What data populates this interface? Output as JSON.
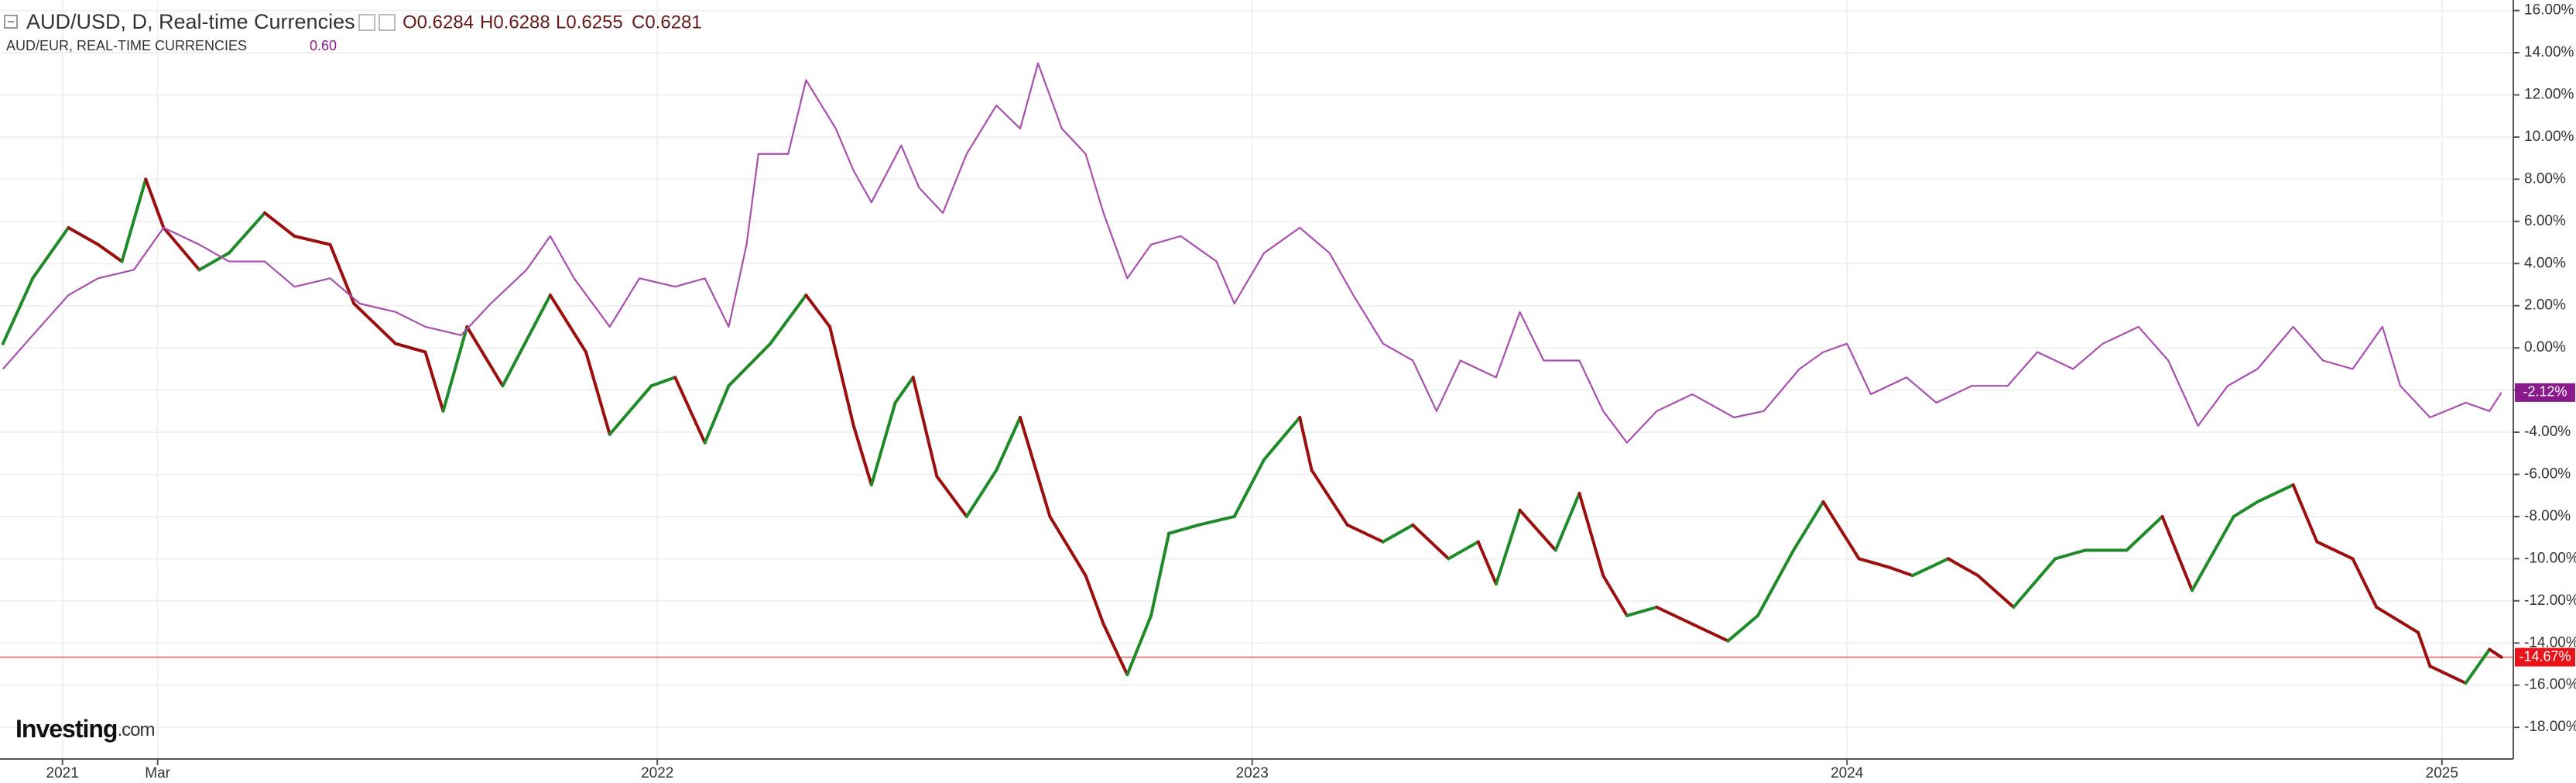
{
  "chart_data": {
    "type": "line",
    "title": "AUD/USD, D, Real-time Currencies",
    "ohlc": [
      "O0.6284",
      "H0.6288",
      "L0.6255",
      "C0.6281"
    ],
    "logo": [
      "Investing",
      ".com"
    ],
    "xlim": [
      2020.895,
      2025.12
    ],
    "xticks": [
      {
        "value": 2021,
        "label": "2021"
      },
      {
        "value": 2021.16,
        "label": "Mar"
      },
      {
        "value": 2022,
        "label": "2022"
      },
      {
        "value": 2023,
        "label": "2023"
      },
      {
        "value": 2024,
        "label": "2024"
      },
      {
        "value": 2025,
        "label": "2025"
      }
    ],
    "ylim": [
      16.5,
      -19.5
    ],
    "yticks": [
      {
        "value": 16,
        "label": "16.00%"
      },
      {
        "value": 14,
        "label": "14.00%"
      },
      {
        "value": 12,
        "label": "12.00%"
      },
      {
        "value": 10,
        "label": "10.00%"
      },
      {
        "value": 8,
        "label": "8.00%"
      },
      {
        "value": 6,
        "label": "6.00%"
      },
      {
        "value": 4,
        "label": "4.00%"
      },
      {
        "value": 2,
        "label": "2.00%"
      },
      {
        "value": 0,
        "label": "0.00%"
      },
      {
        "value": -2,
        "label": "-2.00%"
      },
      {
        "value": -4,
        "label": "-4.00%"
      },
      {
        "value": -6,
        "label": "-6.00%"
      },
      {
        "value": -8,
        "label": "-8.00%"
      },
      {
        "value": -10,
        "label": "-10.00%"
      },
      {
        "value": -12,
        "label": "-12.00%"
      },
      {
        "value": -14,
        "label": "-14.00%"
      },
      {
        "value": -16,
        "label": "-16.00%"
      },
      {
        "value": -18,
        "label": "-18.00%"
      }
    ],
    "grid": true,
    "series": [
      {
        "name": "AUD/USD, D, Real-time Currencies",
        "style": "updown",
        "up_color": "#1e8a28",
        "down_color": "#9c0f0f",
        "last_color": "#e8141a",
        "last_label": "-14.67%",
        "x": [
          2020.9,
          2020.95,
          2021.01,
          2021.06,
          2021.1,
          2021.14,
          2021.17,
          2021.23,
          2021.28,
          2021.34,
          2021.39,
          2021.45,
          2021.49,
          2021.56,
          2021.61,
          2021.64,
          2021.68,
          2021.74,
          2021.82,
          2021.88,
          2021.92,
          2021.99,
          2022.03,
          2022.08,
          2022.12,
          2022.19,
          2022.25,
          2022.29,
          2022.33,
          2022.36,
          2022.4,
          2022.43,
          2022.47,
          2022.52,
          2022.57,
          2022.61,
          2022.66,
          2022.72,
          2022.75,
          2022.79,
          2022.83,
          2022.86,
          2022.91,
          2022.97,
          2023.02,
          2023.08,
          2023.1,
          2023.16,
          2023.22,
          2023.27,
          2023.33,
          2023.38,
          2023.41,
          2023.45,
          2023.51,
          2023.55,
          2023.59,
          2023.63,
          2023.68,
          2023.74,
          2023.8,
          2023.85,
          2023.91,
          2023.96,
          2024.02,
          2024.07,
          2024.11,
          2024.17,
          2024.22,
          2024.28,
          2024.35,
          2024.4,
          2024.47,
          2024.53,
          2024.58,
          2024.65,
          2024.69,
          2024.75,
          2024.79,
          2024.85,
          2024.89,
          2024.96,
          2024.98,
          2025.04,
          2025.08,
          2025.1
        ],
        "values": [
          0.2,
          3.3,
          5.7,
          4.9,
          4.1,
          8.0,
          5.7,
          3.7,
          4.5,
          6.4,
          5.3,
          4.9,
          2.1,
          0.2,
          -0.2,
          -3.0,
          1.0,
          -1.8,
          2.5,
          -0.2,
          -4.1,
          -1.8,
          -1.4,
          -4.5,
          -1.8,
          0.2,
          2.5,
          1.0,
          -3.7,
          -6.5,
          -2.6,
          -1.4,
          -6.1,
          -8.0,
          -5.8,
          -3.3,
          -8.0,
          -10.8,
          -13.1,
          -15.5,
          -12.7,
          -8.8,
          -8.4,
          -8.0,
          -5.3,
          -3.3,
          -5.8,
          -8.4,
          -9.2,
          -8.4,
          -10.0,
          -9.2,
          -11.2,
          -7.7,
          -9.6,
          -6.9,
          -10.8,
          -12.7,
          -12.3,
          -13.1,
          -13.9,
          -12.7,
          -9.6,
          -7.3,
          -10.0,
          -10.4,
          -10.8,
          -10.0,
          -10.8,
          -12.3,
          -10.0,
          -9.6,
          -9.6,
          -8.0,
          -11.5,
          -8.0,
          -7.3,
          -6.5,
          -9.2,
          -10.0,
          -12.3,
          -13.5,
          -15.1,
          -15.9,
          -14.3,
          -14.67
        ]
      },
      {
        "name": "AUD/EUR, REAL-TIME CURRENCIES",
        "legend_value": "0.60",
        "style": "line",
        "color": "#a84fb0",
        "last_color": "#8b1a8c",
        "last_label": "-2.12%",
        "x": [
          2020.9,
          2020.95,
          2021.01,
          2021.06,
          2021.12,
          2021.17,
          2021.23,
          2021.28,
          2021.34,
          2021.39,
          2021.45,
          2021.5,
          2021.56,
          2021.61,
          2021.67,
          2021.72,
          2021.78,
          2021.82,
          2021.86,
          2021.92,
          2021.97,
          2022.03,
          2022.08,
          2022.12,
          2022.15,
          2022.17,
          2022.22,
          2022.25,
          2022.3,
          2022.33,
          2022.36,
          2022.41,
          2022.44,
          2022.48,
          2022.52,
          2022.57,
          2022.61,
          2022.64,
          2022.68,
          2022.72,
          2022.75,
          2022.79,
          2022.83,
          2022.88,
          2022.94,
          2022.97,
          2023.02,
          2023.08,
          2023.13,
          2023.17,
          2023.22,
          2023.27,
          2023.31,
          2023.35,
          2023.41,
          2023.45,
          2023.49,
          2023.55,
          2023.59,
          2023.63,
          2023.68,
          2023.74,
          2023.81,
          2023.86,
          2023.92,
          2023.96,
          2024.0,
          2024.04,
          2024.1,
          2024.15,
          2024.21,
          2024.27,
          2024.32,
          2024.38,
          2024.43,
          2024.49,
          2024.54,
          2024.59,
          2024.64,
          2024.69,
          2024.75,
          2024.8,
          2024.85,
          2024.9,
          2024.93,
          2024.98,
          2025.04,
          2025.08,
          2025.1
        ],
        "values": [
          -1.0,
          0.6,
          2.5,
          3.3,
          3.7,
          5.7,
          4.9,
          4.1,
          4.1,
          2.9,
          3.3,
          2.1,
          1.7,
          1.0,
          0.6,
          2.1,
          3.7,
          5.3,
          3.3,
          1.0,
          3.3,
          2.9,
          3.3,
          1.0,
          4.9,
          9.2,
          9.2,
          12.7,
          10.4,
          8.4,
          6.9,
          9.6,
          7.6,
          6.4,
          9.2,
          11.5,
          10.4,
          13.5,
          10.4,
          9.2,
          6.4,
          3.3,
          4.9,
          5.3,
          4.1,
          2.1,
          4.5,
          5.7,
          4.5,
          2.5,
          0.2,
          -0.6,
          -3.0,
          -0.6,
          -1.4,
          1.7,
          -0.6,
          -0.6,
          -3.0,
          -4.5,
          -3.0,
          -2.2,
          -3.3,
          -3.0,
          -1.0,
          -0.2,
          0.2,
          -2.2,
          -1.4,
          -2.6,
          -1.8,
          -1.8,
          -0.2,
          -1.0,
          0.2,
          1.0,
          -0.6,
          -3.7,
          -1.8,
          -1.0,
          1.0,
          -0.6,
          -1.0,
          1.0,
          -1.8,
          -3.3,
          -2.6,
          -3.0,
          -2.12
        ]
      }
    ]
  }
}
